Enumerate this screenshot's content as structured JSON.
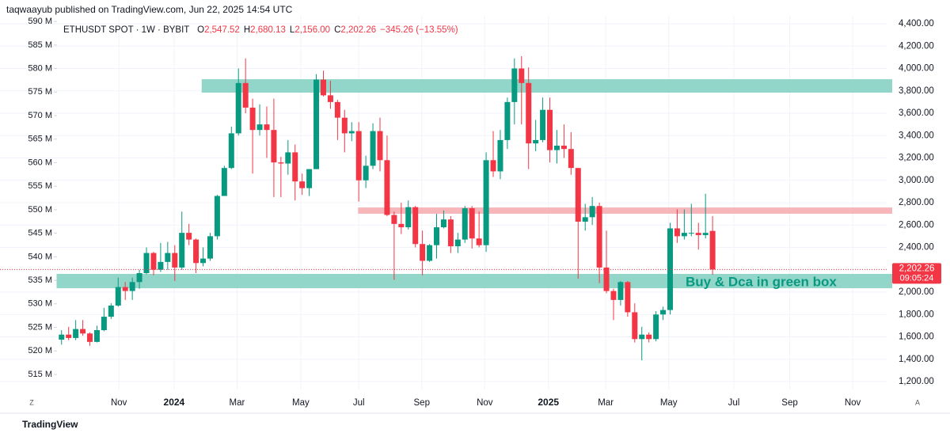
{
  "header": "taqwaayub published on TradingView.com, Jun 22, 2025 14:54 UTC",
  "footer": {
    "brand": "TradingView",
    "left_button": "Z",
    "right_button": "A"
  },
  "chart_data": {
    "type": "candlestick",
    "title": "ETHUSDT SPOT · 1W · BYBIT",
    "legend": [
      {
        "key": "O",
        "value": "2,547.52"
      },
      {
        "key": "H",
        "value": "2,680.13"
      },
      {
        "key": "L",
        "value": "2,156.00"
      },
      {
        "key": "C",
        "value": "2,202.26"
      }
    ],
    "change": "−345.26 (−13.55%)",
    "up_color": "#089981",
    "down_color": "#f23645",
    "open": [
      1575,
      1620,
      1590,
      1670,
      1630,
      1555,
      1660,
      1780,
      1880,
      2045,
      2010,
      2090,
      2170,
      2350,
      2200,
      2270,
      2350,
      2220,
      2530,
      2470,
      2260,
      2300,
      2500,
      2860,
      3110,
      3420,
      3870,
      3650,
      3450,
      3500,
      3450,
      3160,
      3150,
      3250,
      2990,
      2930,
      3100,
      3900,
      3760,
      3700,
      3560,
      3420,
      3440,
      3000,
      3130,
      3440,
      3180,
      2690,
      2610,
      2580,
      2760,
      2430,
      2280,
      2420,
      2580,
      2650,
      2410,
      2470,
      2750,
      2480,
      2420,
      3180,
      3080,
      3360,
      3700,
      4000,
      3870,
      3330,
      3360,
      3630,
      3270,
      3310,
      3280,
      3110,
      2630,
      2670,
      2770,
      2220,
      2010,
      1930,
      2090,
      1820,
      1580,
      1620,
      1580,
      1800,
      1840,
      2570,
      2500,
      2530,
      2530,
      2510,
      2547.52
    ],
    "high": [
      1660,
      1690,
      1750,
      1750,
      1640,
      1700,
      1860,
      1900,
      2130,
      2090,
      2130,
      2200,
      2400,
      2360,
      2440,
      2450,
      2420,
      2720,
      2610,
      2480,
      2400,
      2530,
      2870,
      3130,
      3480,
      4000,
      4090,
      3730,
      3680,
      3660,
      3730,
      3210,
      3360,
      3320,
      3060,
      3100,
      3950,
      3980,
      3890,
      3720,
      3630,
      3520,
      3520,
      3220,
      3510,
      3560,
      3400,
      2720,
      2800,
      2820,
      2770,
      2550,
      2430,
      2700,
      2730,
      2680,
      2530,
      2770,
      2770,
      2720,
      3250,
      3440,
      3450,
      3740,
      4090,
      4110,
      4010,
      3540,
      3740,
      3740,
      3450,
      3500,
      3430,
      3110,
      2790,
      2850,
      2800,
      2550,
      2030,
      2100,
      2100,
      1900,
      1690,
      1640,
      1830,
      1870,
      2620,
      2740,
      2740,
      2790,
      2620,
      2880,
      2680.13
    ],
    "low": [
      1530,
      1570,
      1570,
      1610,
      1520,
      1550,
      1650,
      1760,
      1870,
      1930,
      1930,
      2030,
      2160,
      2150,
      2180,
      2200,
      2100,
      2200,
      2420,
      2170,
      2230,
      2280,
      2470,
      2860,
      3100,
      3400,
      3600,
      3060,
      3400,
      3200,
      2850,
      2850,
      3050,
      2820,
      2870,
      2860,
      3100,
      3750,
      3640,
      3360,
      3250,
      3350,
      2810,
      2930,
      3100,
      3080,
      2680,
      2110,
      2520,
      2560,
      2400,
      2150,
      2270,
      2300,
      2570,
      2350,
      2350,
      2440,
      2390,
      2400,
      2360,
      3030,
      3010,
      3280,
      3500,
      3500,
      3100,
      3260,
      3340,
      3160,
      3150,
      3200,
      3050,
      2120,
      2550,
      2600,
      2080,
      1990,
      1750,
      1880,
      1780,
      1550,
      1390,
      1550,
      1560,
      1750,
      1800,
      2440,
      2470,
      2500,
      2380,
      2480,
      2156
    ],
    "close": [
      1620,
      1590,
      1670,
      1630,
      1555,
      1660,
      1780,
      1880,
      2045,
      2010,
      2090,
      2170,
      2350,
      2200,
      2270,
      2350,
      2220,
      2530,
      2470,
      2260,
      2300,
      2500,
      2860,
      3110,
      3420,
      3870,
      3650,
      3450,
      3500,
      3450,
      3160,
      3150,
      3250,
      2990,
      2930,
      3100,
      3900,
      3760,
      3700,
      3560,
      3420,
      3440,
      3000,
      3130,
      3440,
      3180,
      2690,
      2610,
      2580,
      2760,
      2430,
      2280,
      2420,
      2580,
      2650,
      2410,
      2470,
      2750,
      2480,
      2420,
      3180,
      3080,
      3360,
      3700,
      4000,
      3870,
      3330,
      3360,
      3630,
      3270,
      3310,
      3280,
      3110,
      2630,
      2670,
      2770,
      2220,
      2010,
      1930,
      2090,
      1820,
      1580,
      1620,
      1580,
      1800,
      1840,
      2570,
      2500,
      2530,
      2530,
      2510,
      2530,
      2202.26
    ],
    "xlim": [
      -8.7,
      116.6
    ],
    "xticks": [
      {
        "value": 8.1,
        "label": "Nov"
      },
      {
        "value": 15.9,
        "label": "2024"
      },
      {
        "value": 24.8,
        "label": "Mar"
      },
      {
        "value": 33.8,
        "label": "May"
      },
      {
        "value": 42.0,
        "label": "Jul"
      },
      {
        "value": 50.9,
        "label": "Sep"
      },
      {
        "value": 59.8,
        "label": "Nov"
      },
      {
        "value": 68.8,
        "label": "2025"
      },
      {
        "value": 76.9,
        "label": "Mar"
      },
      {
        "value": 85.8,
        "label": "May"
      },
      {
        "value": 95.0,
        "label": "Jul"
      },
      {
        "value": 102.9,
        "label": "Sep"
      },
      {
        "value": 111.8,
        "label": "Nov"
      }
    ],
    "ylim": [
      1129.2,
      4470.8
    ],
    "yticks": [
      {
        "value": 1200,
        "label": "1,200.00"
      },
      {
        "value": 1400,
        "label": "1,400.00"
      },
      {
        "value": 1600,
        "label": "1,600.00"
      },
      {
        "value": 1800,
        "label": "1,800.00"
      },
      {
        "value": 2000,
        "label": "2,000.00"
      },
      {
        "value": 2200,
        "label": "2,200.00"
      },
      {
        "value": 2400,
        "label": "2,400.00"
      },
      {
        "value": 2600,
        "label": "2,600.00"
      },
      {
        "value": 2800,
        "label": "2,800.00"
      },
      {
        "value": 3000,
        "label": "3,000.00"
      },
      {
        "value": 3200,
        "label": "3,200.00"
      },
      {
        "value": 3400,
        "label": "3,400.00"
      },
      {
        "value": 3600,
        "label": "3,600.00"
      },
      {
        "value": 3800,
        "label": "3,800.00"
      },
      {
        "value": 4000,
        "label": "4,000.00"
      },
      {
        "value": 4200,
        "label": "4,200.00"
      },
      {
        "value": 4400,
        "label": "4,400.00"
      }
    ],
    "y2lim": [
      511.8,
      591.2
    ],
    "y2ticks": [
      {
        "value": 515,
        "label": "515 M"
      },
      {
        "value": 520,
        "label": "520 M"
      },
      {
        "value": 525,
        "label": "525 M"
      },
      {
        "value": 530,
        "label": "530 M"
      },
      {
        "value": 535,
        "label": "535 M"
      },
      {
        "value": 540,
        "label": "540 M"
      },
      {
        "value": 545,
        "label": "545 M"
      },
      {
        "value": 550,
        "label": "550 M"
      },
      {
        "value": 555,
        "label": "555 M"
      },
      {
        "value": 560,
        "label": "560 M"
      },
      {
        "value": 565,
        "label": "565 M"
      },
      {
        "value": 570,
        "label": "570 M"
      },
      {
        "value": 575,
        "label": "575 M"
      },
      {
        "value": 580,
        "label": "580 M"
      },
      {
        "value": 585,
        "label": "585 M"
      },
      {
        "value": 590,
        "label": "590 M"
      }
    ],
    "grid": true,
    "zones": [
      {
        "low": 3784,
        "high": 3904,
        "from": 19.8,
        "color": "#7fcfc0"
      },
      {
        "low": 2701,
        "high": 2757,
        "from": 41.9,
        "color": "#f5a9ae"
      },
      {
        "low": 2035,
        "high": 2163,
        "from": -0.7,
        "color": "#7fcfc0"
      }
    ],
    "annotation": "Buy & Dca in green box",
    "last_price": {
      "value": 2202.26,
      "label": "2,202.26"
    },
    "countdown": "09:05:24"
  }
}
